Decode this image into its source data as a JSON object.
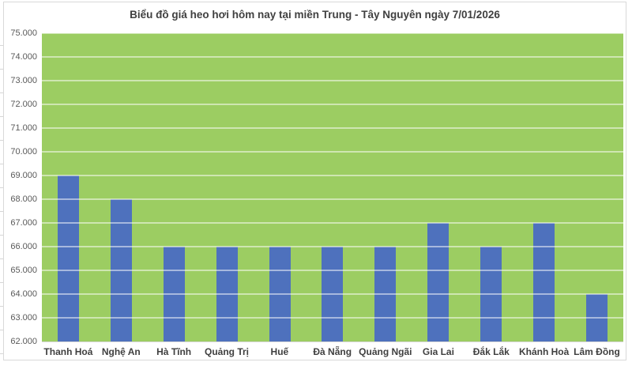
{
  "chart_data": {
    "type": "bar",
    "title": "Biểu đồ giá heo hơi hôm nay tại miền Trung - Tây Nguyên ngày 7/01/2026",
    "categories": [
      "Thanh Hoá",
      "Nghệ An",
      "Hà Tĩnh",
      "Quảng Trị",
      "Huế",
      "Đà Nẵng",
      "Quảng Ngãi",
      "Gia Lai",
      "Đắk Lắk",
      "Khánh Hoà",
      "Lâm Đồng"
    ],
    "values": [
      69000,
      68000,
      66000,
      66000,
      66000,
      66000,
      66000,
      67000,
      66000,
      67000,
      64000
    ],
    "y_tick_labels": [
      "75.000",
      "74.000",
      "73.000",
      "72.000",
      "71.000",
      "70.000",
      "69.000",
      "68.000",
      "67.000",
      "66.000",
      "65.000",
      "64.000",
      "63.000",
      "62.000"
    ],
    "ylim": [
      62000,
      75000
    ],
    "y_step": 1000,
    "xlabel": "",
    "ylabel": "",
    "grid": true,
    "legend": "none",
    "colors": {
      "bar": "#4e71bd",
      "plot_background": "#9ccd62",
      "gridline": "rgba(255,255,255,0.5)",
      "title_text": "#404040",
      "axis_text": "#595959",
      "category_text": "#404040",
      "frame_border": "#d9d9d9"
    }
  }
}
